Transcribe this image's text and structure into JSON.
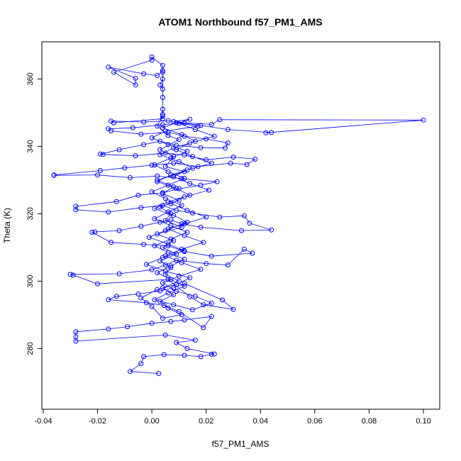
{
  "chart_data": {
    "type": "scatter",
    "title": "ATOM1 Northbound f57_PM1_AMS",
    "xlabel": "f57_PM1_AMS",
    "ylabel": "Theta (K)",
    "xlim": [
      -0.0405,
      0.106
    ],
    "ylim": [
      262,
      371
    ],
    "xticks": [
      -0.04,
      -0.02,
      0.0,
      0.02,
      0.04,
      0.06,
      0.08,
      0.1
    ],
    "xtick_labels": [
      "-0.04",
      "-0.02",
      "0.00",
      "0.02",
      "0.04",
      "0.06",
      "0.08",
      "0.10"
    ],
    "yticks": [
      280,
      300,
      320,
      340,
      360
    ],
    "ytick_labels": [
      "280",
      "300",
      "320",
      "340",
      "360"
    ],
    "grid": false,
    "color": "#0000ff",
    "marker": "open-circle",
    "connected": true,
    "series": [
      {
        "name": "f57_PM1_AMS",
        "points": [
          [
            0.0025,
            272.6
          ],
          [
            -0.008,
            273.2
          ],
          [
            -0.004,
            275.5
          ],
          [
            -0.003,
            277.6
          ],
          [
            0.0045,
            278.2
          ],
          [
            0.012,
            278.0
          ],
          [
            0.018,
            277.6
          ],
          [
            0.022,
            278.3
          ],
          [
            0.023,
            278.4
          ],
          [
            0.013,
            280.0
          ],
          [
            0.009,
            281.8
          ],
          [
            0.016,
            282.5
          ],
          [
            0.005,
            284.0
          ],
          [
            -0.028,
            282.2
          ],
          [
            -0.028,
            283.5
          ],
          [
            -0.028,
            285.0
          ],
          [
            -0.016,
            285.8
          ],
          [
            -0.009,
            286.5
          ],
          [
            0.0,
            287.5
          ],
          [
            0.007,
            288.0
          ],
          [
            0.012,
            288.5
          ],
          [
            0.022,
            289.5
          ],
          [
            0.019,
            286.2
          ],
          [
            0.01,
            291.0
          ],
          [
            0.0045,
            292.8
          ],
          [
            -0.002,
            293.6
          ],
          [
            -0.016,
            294.5
          ],
          [
            -0.013,
            295.5
          ],
          [
            -0.005,
            296.2
          ],
          [
            0.003,
            297.1
          ],
          [
            0.008,
            298.0
          ],
          [
            0.012,
            299.3
          ],
          [
            0.026,
            294.4
          ],
          [
            0.03,
            291.6
          ],
          [
            0.019,
            293.0
          ],
          [
            0.014,
            295.4
          ],
          [
            0.006,
            300.5
          ],
          [
            -0.02,
            299.2
          ],
          [
            -0.029,
            301.8
          ],
          [
            -0.03,
            302.0
          ],
          [
            -0.012,
            302.2
          ],
          [
            0.0,
            303.4
          ],
          [
            0.005,
            304.8
          ],
          [
            0.009,
            306.2
          ],
          [
            0.02,
            305.2
          ],
          [
            0.028,
            304.8
          ],
          [
            0.034,
            309.5
          ],
          [
            0.037,
            308.3
          ],
          [
            0.022,
            307.4
          ],
          [
            0.012,
            308.8
          ],
          [
            0.006,
            310.5
          ],
          [
            -0.003,
            310.9
          ],
          [
            -0.015,
            311.5
          ],
          [
            -0.022,
            314.5
          ],
          [
            -0.021,
            314.6
          ],
          [
            -0.012,
            315.0
          ],
          [
            -0.004,
            316.3
          ],
          [
            0.003,
            317.5
          ],
          [
            0.007,
            318.2
          ],
          [
            0.011,
            317.0
          ],
          [
            0.018,
            316.0
          ],
          [
            0.033,
            315.0
          ],
          [
            0.044,
            315.2
          ],
          [
            0.036,
            317.2
          ],
          [
            0.034,
            319.4
          ],
          [
            0.025,
            319.0
          ],
          [
            0.015,
            320.2
          ],
          [
            0.009,
            321.0
          ],
          [
            0.004,
            322.5
          ],
          [
            -0.004,
            321.8
          ],
          [
            -0.016,
            320.5
          ],
          [
            -0.028,
            321.2
          ],
          [
            -0.028,
            322.2
          ],
          [
            -0.013,
            323.6
          ],
          [
            -0.005,
            325.5
          ],
          [
            0.004,
            326.2
          ],
          [
            0.01,
            327.4
          ],
          [
            0.018,
            328.5
          ],
          [
            0.024,
            329.5
          ],
          [
            0.011,
            330.4
          ],
          [
            0.002,
            331.2
          ],
          [
            -0.008,
            330.7
          ],
          [
            -0.02,
            331.5
          ],
          [
            -0.036,
            331.4
          ],
          [
            -0.036,
            331.5
          ],
          [
            -0.019,
            332.8
          ],
          [
            -0.01,
            333.6
          ],
          [
            0.0,
            334.4
          ],
          [
            0.008,
            335.0
          ],
          [
            0.017,
            334.0
          ],
          [
            0.029,
            335.0
          ],
          [
            0.035,
            334.6
          ],
          [
            0.038,
            336.2
          ],
          [
            0.03,
            336.8
          ],
          [
            0.02,
            336.0
          ],
          [
            0.012,
            337.4
          ],
          [
            0.005,
            338.0
          ],
          [
            -0.006,
            337.2
          ],
          [
            -0.018,
            337.6
          ],
          [
            -0.019,
            337.7
          ],
          [
            -0.012,
            339.0
          ],
          [
            -0.003,
            340.5
          ],
          [
            0.003,
            341.5
          ],
          [
            0.009,
            340.3
          ],
          [
            0.018,
            339.6
          ],
          [
            0.027,
            339.5
          ],
          [
            0.028,
            341.0
          ],
          [
            0.02,
            342.2
          ],
          [
            0.012,
            343.0
          ],
          [
            0.006,
            344.2
          ],
          [
            -0.004,
            343.6
          ],
          [
            -0.015,
            344.6
          ],
          [
            -0.016,
            345.2
          ],
          [
            -0.007,
            345.5
          ],
          [
            0.004,
            346.4
          ],
          [
            0.012,
            347.0
          ],
          [
            0.022,
            346.5
          ],
          [
            0.025,
            347.9
          ],
          [
            0.1,
            347.8
          ],
          [
            0.042,
            344.0
          ],
          [
            0.044,
            344.1
          ],
          [
            0.028,
            345.0
          ],
          [
            0.018,
            346.2
          ],
          [
            0.006,
            347.6
          ],
          [
            -0.003,
            347.2
          ],
          [
            -0.015,
            347.5
          ],
          [
            -0.014,
            347.0
          ],
          [
            0.004,
            348.2
          ],
          [
            0.004,
            349.5
          ],
          [
            0.004,
            351.0
          ],
          [
            0.004,
            354.5
          ],
          [
            0.004,
            357.0
          ],
          [
            0.003,
            358.2
          ],
          [
            0.004,
            360.0
          ],
          [
            0.004,
            362.0
          ],
          [
            0.004,
            364.0
          ],
          [
            0.0,
            366.5
          ],
          [
            0.0,
            365.6
          ],
          [
            -0.014,
            362.0
          ],
          [
            -0.006,
            358.2
          ],
          [
            -0.006,
            360.2
          ],
          [
            -0.016,
            363.5
          ],
          [
            -0.003,
            361.5
          ],
          [
            0.002,
            361.0
          ],
          [
            0.004,
            362.5
          ],
          [
            0.004,
            349.0
          ],
          [
            0.002,
            346.0
          ],
          [
            0.006,
            343.2
          ],
          [
            0.01,
            342.0
          ],
          [
            0.003,
            339.0
          ],
          [
            0.008,
            337.0
          ],
          [
            0.005,
            334.0
          ],
          [
            0.012,
            332.5
          ],
          [
            0.002,
            330.0
          ],
          [
            0.008,
            328.0
          ],
          [
            0.004,
            326.0
          ],
          [
            0.01,
            324.0
          ],
          [
            0.003,
            322.0
          ],
          [
            0.007,
            320.0
          ],
          [
            0.005,
            318.0
          ],
          [
            0.011,
            316.0
          ],
          [
            0.002,
            314.0
          ],
          [
            0.008,
            312.0
          ],
          [
            0.004,
            310.0
          ],
          [
            0.009,
            308.0
          ],
          [
            0.003,
            306.0
          ],
          [
            0.007,
            304.0
          ],
          [
            0.005,
            302.0
          ],
          [
            0.01,
            300.0
          ],
          [
            0.004,
            298.0
          ],
          [
            0.008,
            296.0
          ],
          [
            0.003,
            294.0
          ],
          [
            0.006,
            292.0
          ],
          [
            0.011,
            290.0
          ],
          [
            0.004,
            289.0
          ],
          [
            0.0,
            292.5
          ],
          [
            -0.004,
            295.0
          ],
          [
            0.002,
            297.5
          ],
          [
            0.009,
            299.0
          ],
          [
            0.014,
            301.0
          ],
          [
            0.005,
            303.0
          ],
          [
            -0.002,
            305.0
          ],
          [
            0.004,
            307.0
          ],
          [
            0.012,
            309.0
          ],
          [
            0.006,
            311.0
          ],
          [
            -0.001,
            313.0
          ],
          [
            0.005,
            315.0
          ],
          [
            0.013,
            317.5
          ],
          [
            0.008,
            319.5
          ],
          [
            0.001,
            321.5
          ],
          [
            0.006,
            323.5
          ],
          [
            0.014,
            325.5
          ],
          [
            0.009,
            327.5
          ],
          [
            0.002,
            329.5
          ],
          [
            0.007,
            331.5
          ],
          [
            0.015,
            333.5
          ],
          [
            0.01,
            335.5
          ],
          [
            0.003,
            337.5
          ],
          [
            0.008,
            339.5
          ],
          [
            0.016,
            341.5
          ],
          [
            0.011,
            343.5
          ],
          [
            0.004,
            345.5
          ],
          [
            0.009,
            347.0
          ],
          [
            0.017,
            346.0
          ],
          [
            0.005,
            344.5
          ],
          [
            0.0,
            342.5
          ],
          [
            0.006,
            340.5
          ],
          [
            0.013,
            338.5
          ],
          [
            0.007,
            336.5
          ],
          [
            0.001,
            334.5
          ],
          [
            0.006,
            332.5
          ],
          [
            0.012,
            330.5
          ],
          [
            0.006,
            328.5
          ],
          [
            0.0,
            326.5
          ],
          [
            0.005,
            324.5
          ],
          [
            0.011,
            322.5
          ],
          [
            0.006,
            320.5
          ],
          [
            0.001,
            318.5
          ],
          [
            0.007,
            316.5
          ],
          [
            0.013,
            314.5
          ],
          [
            0.007,
            312.5
          ],
          [
            0.001,
            310.5
          ],
          [
            0.006,
            308.5
          ],
          [
            0.012,
            306.5
          ],
          [
            0.007,
            304.5
          ],
          [
            0.002,
            302.5
          ],
          [
            0.007,
            300.5
          ],
          [
            0.012,
            298.5
          ],
          [
            0.006,
            296.5
          ],
          [
            0.001,
            294.5
          ],
          [
            0.008,
            293.0
          ],
          [
            0.015,
            291.5
          ],
          [
            0.022,
            293.5
          ],
          [
            0.016,
            295.5
          ],
          [
            0.009,
            297.0
          ],
          [
            0.004,
            299.5
          ],
          [
            0.01,
            301.5
          ],
          [
            0.018,
            303.5
          ],
          [
            0.011,
            305.5
          ],
          [
            0.005,
            307.5
          ],
          [
            0.011,
            309.5
          ],
          [
            0.019,
            311.5
          ],
          [
            0.012,
            313.5
          ],
          [
            0.006,
            315.5
          ],
          [
            0.012,
            317.0
          ],
          [
            0.02,
            319.0
          ],
          [
            0.013,
            321.0
          ],
          [
            0.007,
            323.0
          ],
          [
            0.012,
            325.0
          ],
          [
            0.021,
            327.0
          ],
          [
            0.014,
            329.0
          ],
          [
            0.008,
            331.0
          ],
          [
            0.013,
            333.0
          ],
          [
            0.022,
            335.0
          ],
          [
            0.015,
            337.0
          ],
          [
            0.009,
            339.0
          ],
          [
            0.014,
            341.0
          ],
          [
            0.023,
            343.0
          ],
          [
            0.016,
            345.0
          ],
          [
            0.01,
            346.8
          ],
          [
            0.014,
            348.0
          ],
          [
            0.008,
            347.4
          ]
        ]
      }
    ]
  }
}
